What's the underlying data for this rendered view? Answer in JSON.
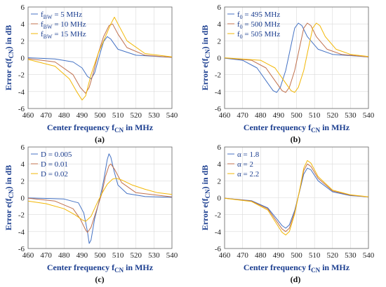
{
  "colors": {
    "blue": "#4472c4",
    "orange": "#c0704d",
    "yellow": "#f2b705",
    "label": "#1a3d8f"
  },
  "chart_data": [
    {
      "type": "line",
      "panel_label": "(a)",
      "xlabel": {
        "main": "Center frequency f",
        "sub": "CN",
        "tail": " in MHz"
      },
      "ylabel": {
        "main": "Error e(f",
        "sub": "CN",
        "tail": ") in dB"
      },
      "xlim": [
        460,
        540
      ],
      "ylim": [
        -6,
        6
      ],
      "xticks": [
        460,
        470,
        480,
        490,
        500,
        510,
        520,
        530,
        540
      ],
      "yticks": [
        -6,
        -4,
        -2,
        0,
        2,
        4,
        6
      ],
      "grid": true,
      "legend_position": "top-left",
      "series": [
        {
          "name": "f",
          "name_sub": "BW",
          "name_tail": " = 5 MHz",
          "color": "#4472c4",
          "points": [
            [
              460,
              0
            ],
            [
              475,
              -0.15
            ],
            [
              485,
              -0.5
            ],
            [
              490,
              -1.2
            ],
            [
              493,
              -2.2
            ],
            [
              495,
              -2.5
            ],
            [
              497,
              -1.8
            ],
            [
              500,
              0.5
            ],
            [
              502,
              1.9
            ],
            [
              504,
              2.5
            ],
            [
              506,
              2.2
            ],
            [
              510,
              1
            ],
            [
              520,
              0.3
            ],
            [
              540,
              0.05
            ]
          ]
        },
        {
          "name": "f",
          "name_sub": "BW",
          "name_tail": " = 10 MHz",
          "color": "#c0704d",
          "points": [
            [
              460,
              -0.1
            ],
            [
              475,
              -0.5
            ],
            [
              485,
              -2
            ],
            [
              489,
              -3.5
            ],
            [
              492,
              -4.2
            ],
            [
              494,
              -3.5
            ],
            [
              496,
              -2
            ],
            [
              499,
              0.5
            ],
            [
              502,
              2.5
            ],
            [
              505,
              3.8
            ],
            [
              507,
              4
            ],
            [
              510,
              2.8
            ],
            [
              515,
              1.2
            ],
            [
              525,
              0.3
            ],
            [
              540,
              0.05
            ]
          ]
        },
        {
          "name": "f",
          "name_sub": "BW",
          "name_tail": " = 15 MHz",
          "color": "#f2b705",
          "points": [
            [
              460,
              -0.2
            ],
            [
              475,
              -1
            ],
            [
              483,
              -2.5
            ],
            [
              487,
              -4
            ],
            [
              490,
              -5
            ],
            [
              492,
              -4.5
            ],
            [
              495,
              -2
            ],
            [
              499,
              0.5
            ],
            [
              503,
              2.5
            ],
            [
              506,
              4
            ],
            [
              508,
              4.8
            ],
            [
              510,
              4
            ],
            [
              515,
              2
            ],
            [
              525,
              0.5
            ],
            [
              540,
              0.1
            ]
          ]
        }
      ]
    },
    {
      "type": "line",
      "panel_label": "(b)",
      "xlabel": {
        "main": "Center frequency f",
        "sub": "CN",
        "tail": " in MHz"
      },
      "ylabel": {
        "main": "Error e(f",
        "sub": "CN",
        "tail": ") in dB"
      },
      "xlim": [
        460,
        540
      ],
      "ylim": [
        -6,
        6
      ],
      "xticks": [
        460,
        470,
        480,
        490,
        500,
        510,
        520,
        530,
        540
      ],
      "yticks": [
        -6,
        -4,
        -2,
        0,
        2,
        4,
        6
      ],
      "grid": true,
      "legend_position": "top-left",
      "series": [
        {
          "name": "f",
          "name_sub": "0",
          "name_tail": " = 495 MHz",
          "color": "#4472c4",
          "points": [
            [
              460,
              -0.05
            ],
            [
              470,
              -0.3
            ],
            [
              478,
              -1.2
            ],
            [
              484,
              -3
            ],
            [
              487,
              -3.9
            ],
            [
              489,
              -4.1
            ],
            [
              491,
              -3.5
            ],
            [
              494,
              -1.5
            ],
            [
              497,
              1.5
            ],
            [
              499,
              3.5
            ],
            [
              501,
              4.1
            ],
            [
              503,
              3.8
            ],
            [
              506,
              2.5
            ],
            [
              512,
              1
            ],
            [
              520,
              0.4
            ],
            [
              540,
              0.1
            ]
          ]
        },
        {
          "name": "f",
          "name_sub": "0",
          "name_tail": " = 500 MHz",
          "color": "#c0704d",
          "points": [
            [
              460,
              -0.02
            ],
            [
              475,
              -0.3
            ],
            [
              483,
              -1.2
            ],
            [
              489,
              -3
            ],
            [
              492,
              -3.9
            ],
            [
              494,
              -4.1
            ],
            [
              496,
              -3.5
            ],
            [
              499,
              -1.5
            ],
            [
              502,
              1.5
            ],
            [
              504,
              3.5
            ],
            [
              506,
              4.1
            ],
            [
              508,
              3.8
            ],
            [
              511,
              2.5
            ],
            [
              517,
              1
            ],
            [
              525,
              0.4
            ],
            [
              540,
              0.1
            ]
          ]
        },
        {
          "name": "f",
          "name_sub": "0",
          "name_tail": " = 505 MHz",
          "color": "#f2b705",
          "points": [
            [
              460,
              -0.01
            ],
            [
              480,
              -0.3
            ],
            [
              488,
              -1.2
            ],
            [
              494,
              -3
            ],
            [
              497,
              -3.9
            ],
            [
              499,
              -4.1
            ],
            [
              501,
              -3.5
            ],
            [
              504,
              -1.5
            ],
            [
              507,
              1.5
            ],
            [
              509,
              3.5
            ],
            [
              511,
              4.1
            ],
            [
              513,
              3.8
            ],
            [
              516,
              2.5
            ],
            [
              522,
              1
            ],
            [
              530,
              0.4
            ],
            [
              540,
              0.15
            ]
          ]
        }
      ]
    },
    {
      "type": "line",
      "panel_label": "(c)",
      "xlabel": {
        "main": "Center frequency f",
        "sub": "CN",
        "tail": " in MHz"
      },
      "ylabel": {
        "main": "Error e(f",
        "sub": "CN",
        "tail": ") in dB"
      },
      "xlim": [
        460,
        540
      ],
      "ylim": [
        -6,
        6
      ],
      "xticks": [
        460,
        470,
        480,
        490,
        500,
        510,
        520,
        530,
        540
      ],
      "yticks": [
        -6,
        -4,
        -2,
        0,
        2,
        4,
        6
      ],
      "grid": true,
      "legend_position": "top-left",
      "series": [
        {
          "name": "D = 0.005",
          "color": "#4472c4",
          "points": [
            [
              460,
              -0.02
            ],
            [
              480,
              -0.15
            ],
            [
              488,
              -0.6
            ],
            [
              491,
              -1.8
            ],
            [
              493,
              -4
            ],
            [
              494,
              -5.4
            ],
            [
              495,
              -5
            ],
            [
              497,
              -2.5
            ],
            [
              500,
              0
            ],
            [
              502,
              2
            ],
            [
              504,
              4.5
            ],
            [
              505,
              5.2
            ],
            [
              506,
              4.8
            ],
            [
              508,
              3
            ],
            [
              510,
              1.5
            ],
            [
              515,
              0.5
            ],
            [
              525,
              0.15
            ],
            [
              540,
              0.05
            ]
          ]
        },
        {
          "name": "D = 0.01",
          "color": "#c0704d",
          "points": [
            [
              460,
              -0.05
            ],
            [
              475,
              -0.4
            ],
            [
              485,
              -1.3
            ],
            [
              489,
              -2.5
            ],
            [
              492,
              -3.8
            ],
            [
              493,
              -4.1
            ],
            [
              495,
              -3.5
            ],
            [
              498,
              -1.5
            ],
            [
              501,
              0.5
            ],
            [
              503,
              2.5
            ],
            [
              505,
              3.8
            ],
            [
              506,
              4
            ],
            [
              508,
              3.4
            ],
            [
              512,
              1.8
            ],
            [
              520,
              0.6
            ],
            [
              540,
              0.1
            ]
          ]
        },
        {
          "name": "D = 0.02",
          "color": "#f2b705",
          "points": [
            [
              460,
              -0.4
            ],
            [
              470,
              -0.7
            ],
            [
              480,
              -1.3
            ],
            [
              486,
              -2
            ],
            [
              490,
              -2.6
            ],
            [
              492,
              -2.8
            ],
            [
              495,
              -2.2
            ],
            [
              498,
              -0.8
            ],
            [
              501,
              0.5
            ],
            [
              504,
              1.6
            ],
            [
              507,
              2.2
            ],
            [
              509,
              2.3
            ],
            [
              512,
              2.1
            ],
            [
              518,
              1.5
            ],
            [
              525,
              1
            ],
            [
              532,
              0.6
            ],
            [
              540,
              0.4
            ]
          ]
        }
      ]
    },
    {
      "type": "line",
      "panel_label": "(d)",
      "xlabel": {
        "main": "Center frequency f",
        "sub": "CN",
        "tail": " in MHz"
      },
      "ylabel": {
        "main": "Error e(f",
        "sub": "CN",
        "tail": ") in dB"
      },
      "xlim": [
        460,
        540
      ],
      "ylim": [
        -6,
        6
      ],
      "xticks": [
        460,
        470,
        480,
        490,
        500,
        510,
        520,
        530,
        540
      ],
      "yticks": [
        -6,
        -4,
        -2,
        0,
        2,
        4,
        6
      ],
      "grid": true,
      "legend_position": "top-left",
      "series": [
        {
          "name": "α = 1.8",
          "color": "#4472c4",
          "points": [
            [
              460,
              -0.05
            ],
            [
              475,
              -0.35
            ],
            [
              484,
              -1.2
            ],
            [
              489,
              -2.5
            ],
            [
              492,
              -3.3
            ],
            [
              494,
              -3.6
            ],
            [
              496,
              -3.2
            ],
            [
              499,
              -1.5
            ],
            [
              502,
              1
            ],
            [
              504,
              2.8
            ],
            [
              506,
              3.5
            ],
            [
              508,
              3.3
            ],
            [
              512,
              2
            ],
            [
              520,
              0.7
            ],
            [
              530,
              0.25
            ],
            [
              540,
              0.1
            ]
          ]
        },
        {
          "name": "α = 2",
          "color": "#c0704d",
          "points": [
            [
              460,
              -0.05
            ],
            [
              475,
              -0.4
            ],
            [
              484,
              -1.3
            ],
            [
              489,
              -2.8
            ],
            [
              492,
              -3.7
            ],
            [
              494,
              -4
            ],
            [
              496,
              -3.6
            ],
            [
              499,
              -1.7
            ],
            [
              502,
              1.1
            ],
            [
              504,
              3.2
            ],
            [
              506,
              4
            ],
            [
              508,
              3.7
            ],
            [
              512,
              2.3
            ],
            [
              520,
              0.8
            ],
            [
              530,
              0.3
            ],
            [
              540,
              0.1
            ]
          ]
        },
        {
          "name": "α = 2.2",
          "color": "#f2b705",
          "points": [
            [
              460,
              -0.06
            ],
            [
              475,
              -0.45
            ],
            [
              484,
              -1.45
            ],
            [
              489,
              -3.1
            ],
            [
              492,
              -4.1
            ],
            [
              494,
              -4.4
            ],
            [
              496,
              -4
            ],
            [
              499,
              -1.9
            ],
            [
              502,
              1.2
            ],
            [
              504,
              3.5
            ],
            [
              506,
              4.4
            ],
            [
              508,
              4.1
            ],
            [
              512,
              2.5
            ],
            [
              520,
              0.9
            ],
            [
              530,
              0.35
            ],
            [
              540,
              0.12
            ]
          ]
        }
      ]
    }
  ]
}
